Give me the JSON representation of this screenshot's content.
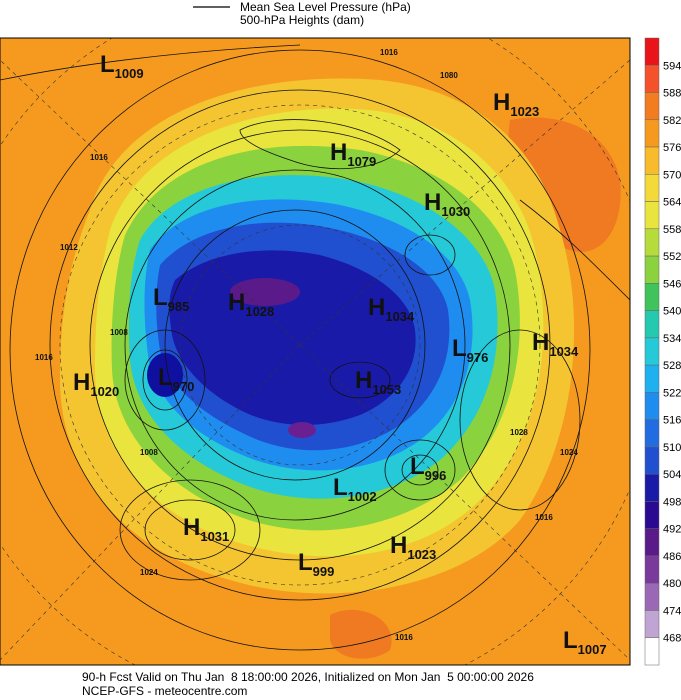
{
  "header": {
    "legend": [
      "Mean Sea Level Pressure (hPa)",
      "500-hPa Heights (dam)"
    ]
  },
  "centers": [
    {
      "letter": "L",
      "value": "1009"
    },
    {
      "letter": "H",
      "value": "1023"
    },
    {
      "letter": "H",
      "value": "1079"
    },
    {
      "letter": "H",
      "value": "1030"
    },
    {
      "letter": "L",
      "value": "985"
    },
    {
      "letter": "H",
      "value": "1028"
    },
    {
      "letter": "H",
      "value": "1034"
    },
    {
      "letter": "L",
      "value": "976"
    },
    {
      "letter": "H",
      "value": "1034"
    },
    {
      "letter": "H",
      "value": "1020"
    },
    {
      "letter": "L",
      "value": "970"
    },
    {
      "letter": "H",
      "value": "1053"
    },
    {
      "letter": "L",
      "value": "996"
    },
    {
      "letter": "L",
      "value": "1002"
    },
    {
      "letter": "H",
      "value": "1031"
    },
    {
      "letter": "H",
      "value": "1023"
    },
    {
      "letter": "L",
      "value": "999"
    },
    {
      "letter": "L",
      "value": "1007"
    }
  ],
  "contour_labels": [
    "1016",
    "1012",
    "1016",
    "1016",
    "1080",
    "1008",
    "1008",
    "1028",
    "1024",
    "1016",
    "1024",
    "1016"
  ],
  "colorbar": {
    "labels": [
      "594",
      "588",
      "582",
      "576",
      "570",
      "564",
      "558",
      "552",
      "546",
      "540",
      "534",
      "528",
      "522",
      "516",
      "510",
      "504",
      "498",
      "492",
      "486",
      "480",
      "474",
      "468"
    ],
    "colors": [
      "#e8141a",
      "#f4522a",
      "#f47c20",
      "#f59a1f",
      "#f7bb2c",
      "#f4da38",
      "#e9e43e",
      "#b6dc3c",
      "#8bd23f",
      "#3fc35a",
      "#25c9b0",
      "#25c9d8",
      "#1fb0f0",
      "#1f8df0",
      "#206ce0",
      "#2050d0",
      "#1a1aa8",
      "#2a0a90",
      "#5a1a8a",
      "#7a3a9c",
      "#9a68b4",
      "#c0a4d4",
      "#ffffff"
    ]
  },
  "footer": [
    "90-h Fcst Valid on Thu Jan  8 18:00:00 2026, Initialized on Mon Jan  5 00:00:00 2026",
    "NCEP-GFS - meteocentre.com"
  ]
}
